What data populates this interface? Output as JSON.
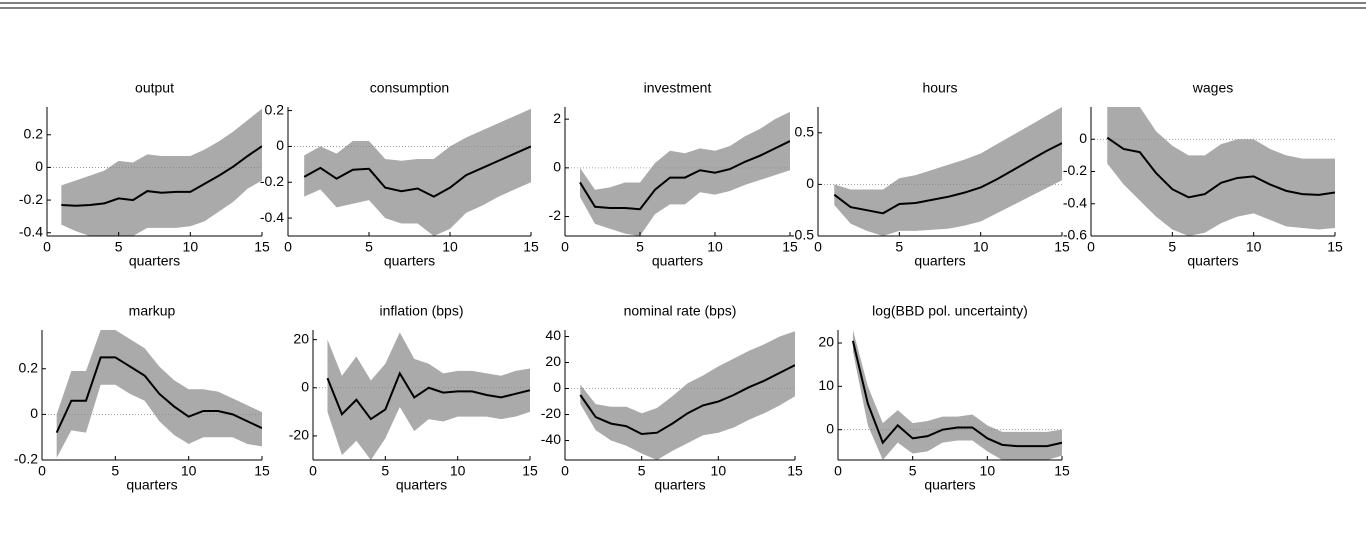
{
  "chart_data": [
    {
      "type": "line",
      "title": "output",
      "xlabel": "quarters",
      "x": [
        1,
        2,
        3,
        4,
        5,
        6,
        7,
        8,
        9,
        10,
        11,
        12,
        13,
        14,
        15
      ],
      "xlim": [
        0,
        15
      ],
      "xticks": [
        0,
        5,
        10,
        15
      ],
      "ylim": [
        -0.42,
        0.37
      ],
      "yticks": [
        -0.4,
        -0.2,
        0,
        0.2
      ],
      "color": "#000000",
      "band_color": "#aaaaaa",
      "values": [
        -0.23,
        -0.235,
        -0.23,
        -0.22,
        -0.19,
        -0.2,
        -0.145,
        -0.155,
        -0.15,
        -0.15,
        -0.1,
        -0.05,
        0.005,
        0.07,
        0.13
      ],
      "upper": [
        -0.11,
        -0.08,
        -0.05,
        -0.02,
        0.04,
        0.03,
        0.08,
        0.07,
        0.07,
        0.07,
        0.11,
        0.16,
        0.22,
        0.29,
        0.36
      ],
      "lower": [
        -0.35,
        -0.39,
        -0.42,
        -0.42,
        -0.42,
        -0.42,
        -0.37,
        -0.37,
        -0.37,
        -0.36,
        -0.33,
        -0.27,
        -0.21,
        -0.13,
        -0.08
      ]
    },
    {
      "type": "line",
      "title": "consumption",
      "xlabel": "quarters",
      "x": [
        1,
        2,
        3,
        4,
        5,
        6,
        7,
        8,
        9,
        10,
        11,
        12,
        13,
        14,
        15
      ],
      "xlim": [
        0,
        15
      ],
      "xticks": [
        0,
        5,
        10,
        15
      ],
      "ylim": [
        -0.5,
        0.22
      ],
      "yticks": [
        -0.4,
        -0.2,
        0,
        0.2
      ],
      "color": "#000000",
      "band_color": "#aaaaaa",
      "values": [
        -0.17,
        -0.12,
        -0.18,
        -0.13,
        -0.125,
        -0.23,
        -0.25,
        -0.235,
        -0.28,
        -0.23,
        -0.16,
        -0.12,
        -0.08,
        -0.04,
        0.0
      ],
      "upper": [
        -0.05,
        0.0,
        -0.04,
        0.03,
        0.03,
        -0.07,
        -0.08,
        -0.07,
        -0.07,
        0.0,
        0.05,
        0.09,
        0.13,
        0.17,
        0.21
      ],
      "lower": [
        -0.28,
        -0.24,
        -0.34,
        -0.32,
        -0.3,
        -0.4,
        -0.43,
        -0.43,
        -0.5,
        -0.46,
        -0.37,
        -0.33,
        -0.28,
        -0.24,
        -0.2
      ]
    },
    {
      "type": "line",
      "title": "investment",
      "xlabel": "quarters",
      "x": [
        1,
        2,
        3,
        4,
        5,
        6,
        7,
        8,
        9,
        10,
        11,
        12,
        13,
        14,
        15
      ],
      "xlim": [
        0,
        15
      ],
      "xticks": [
        0,
        5,
        10,
        15
      ],
      "ylim": [
        -2.8,
        2.5
      ],
      "yticks": [
        -2,
        0,
        2
      ],
      "color": "#000000",
      "band_color": "#aaaaaa",
      "values": [
        -0.6,
        -1.6,
        -1.65,
        -1.65,
        -1.7,
        -0.9,
        -0.4,
        -0.4,
        -0.1,
        -0.2,
        -0.05,
        0.25,
        0.5,
        0.8,
        1.1
      ],
      "upper": [
        0.0,
        -0.9,
        -0.8,
        -0.6,
        -0.6,
        0.2,
        0.7,
        0.6,
        0.8,
        0.7,
        0.9,
        1.3,
        1.6,
        2.0,
        2.3
      ],
      "lower": [
        -1.2,
        -2.3,
        -2.5,
        -2.7,
        -2.8,
        -1.9,
        -1.5,
        -1.5,
        -1.0,
        -1.1,
        -0.95,
        -0.7,
        -0.5,
        -0.3,
        -0.1
      ]
    },
    {
      "type": "line",
      "title": "hours",
      "xlabel": "quarters",
      "x": [
        1,
        2,
        3,
        4,
        5,
        6,
        7,
        8,
        9,
        10,
        11,
        12,
        13,
        14,
        15
      ],
      "xlim": [
        0,
        15
      ],
      "xticks": [
        0,
        5,
        10,
        15
      ],
      "ylim": [
        -0.5,
        0.75
      ],
      "yticks": [
        -0.5,
        0,
        0.5
      ],
      "color": "#000000",
      "band_color": "#aaaaaa",
      "values": [
        -0.1,
        -0.22,
        -0.25,
        -0.28,
        -0.19,
        -0.18,
        -0.15,
        -0.12,
        -0.08,
        -0.03,
        0.05,
        0.14,
        0.23,
        0.32,
        0.4
      ],
      "upper": [
        0.0,
        -0.05,
        -0.05,
        -0.05,
        0.06,
        0.09,
        0.14,
        0.19,
        0.24,
        0.3,
        0.39,
        0.48,
        0.57,
        0.66,
        0.75
      ],
      "lower": [
        -0.2,
        -0.38,
        -0.45,
        -0.5,
        -0.45,
        -0.45,
        -0.44,
        -0.43,
        -0.4,
        -0.36,
        -0.28,
        -0.2,
        -0.12,
        -0.04,
        0.04
      ]
    },
    {
      "type": "line",
      "title": "wages",
      "xlabel": "quarters",
      "x": [
        1,
        2,
        3,
        4,
        5,
        6,
        7,
        8,
        9,
        10,
        11,
        12,
        13,
        14,
        15
      ],
      "xlim": [
        0,
        15
      ],
      "xticks": [
        0,
        5,
        10,
        15
      ],
      "ylim": [
        -0.6,
        0.2
      ],
      "yticks": [
        -0.6,
        -0.4,
        -0.2,
        0
      ],
      "color": "#000000",
      "band_color": "#aaaaaa",
      "values": [
        0.01,
        -0.06,
        -0.08,
        -0.21,
        -0.31,
        -0.36,
        -0.34,
        -0.27,
        -0.24,
        -0.23,
        -0.28,
        -0.32,
        -0.34,
        -0.345,
        -0.33
      ],
      "upper": [
        0.2,
        0.2,
        0.2,
        0.05,
        -0.04,
        -0.1,
        -0.1,
        -0.03,
        0.0,
        0.0,
        -0.06,
        -0.1,
        -0.12,
        -0.12,
        -0.12
      ],
      "lower": [
        -0.15,
        -0.28,
        -0.38,
        -0.48,
        -0.56,
        -0.6,
        -0.58,
        -0.52,
        -0.48,
        -0.46,
        -0.5,
        -0.54,
        -0.55,
        -0.56,
        -0.55
      ]
    },
    {
      "type": "line",
      "title": "markup",
      "xlabel": "quarters",
      "x": [
        1,
        2,
        3,
        4,
        5,
        6,
        7,
        8,
        9,
        10,
        11,
        12,
        13,
        14,
        15
      ],
      "xlim": [
        0,
        15
      ],
      "xticks": [
        0,
        5,
        10,
        15
      ],
      "ylim": [
        -0.2,
        0.37
      ],
      "yticks": [
        -0.2,
        0,
        0.2
      ],
      "color": "#000000",
      "band_color": "#aaaaaa",
      "values": [
        -0.08,
        0.06,
        0.06,
        0.25,
        0.25,
        0.21,
        0.17,
        0.09,
        0.035,
        -0.01,
        0.015,
        0.015,
        0.0,
        -0.03,
        -0.06
      ],
      "upper": [
        0.0,
        0.19,
        0.19,
        0.37,
        0.37,
        0.33,
        0.29,
        0.21,
        0.15,
        0.11,
        0.11,
        0.1,
        0.07,
        0.04,
        0.01
      ],
      "lower": [
        -0.19,
        -0.07,
        -0.08,
        0.13,
        0.13,
        0.09,
        0.06,
        -0.03,
        -0.09,
        -0.13,
        -0.1,
        -0.1,
        -0.1,
        -0.13,
        -0.14
      ]
    },
    {
      "type": "line",
      "title": "inflation (bps)",
      "xlabel": "quarters",
      "x": [
        1,
        2,
        3,
        4,
        5,
        6,
        7,
        8,
        9,
        10,
        11,
        12,
        13,
        14,
        15
      ],
      "xlim": [
        0,
        15
      ],
      "xticks": [
        0,
        5,
        10,
        15
      ],
      "ylim": [
        -30,
        24
      ],
      "yticks": [
        -20,
        0,
        20
      ],
      "color": "#000000",
      "band_color": "#aaaaaa",
      "values": [
        4,
        -11,
        -5,
        -13,
        -9,
        6,
        -4,
        0,
        -2,
        -1.5,
        -1.5,
        -3,
        -4,
        -2.5,
        -1
      ],
      "upper": [
        20,
        5,
        13,
        3,
        10,
        23,
        12,
        10,
        6,
        7,
        7,
        6,
        5,
        7,
        8
      ],
      "lower": [
        -10,
        -28,
        -22,
        -30,
        -21,
        -8,
        -18,
        -13,
        -14,
        -12,
        -12,
        -12,
        -13,
        -12,
        -10
      ]
    },
    {
      "type": "line",
      "title": "nominal rate (bps)",
      "xlabel": "quarters",
      "x": [
        1,
        2,
        3,
        4,
        5,
        6,
        7,
        8,
        9,
        10,
        11,
        12,
        13,
        14,
        15
      ],
      "xlim": [
        0,
        15
      ],
      "xticks": [
        0,
        5,
        10,
        15
      ],
      "ylim": [
        -55,
        45
      ],
      "yticks": [
        -40,
        -20,
        0,
        20,
        40
      ],
      "color": "#000000",
      "band_color": "#aaaaaa",
      "values": [
        -5,
        -22,
        -27,
        -29,
        -35,
        -34,
        -27,
        -19,
        -13,
        -10,
        -5,
        1,
        6,
        12,
        18
      ],
      "upper": [
        3,
        -12,
        -14,
        -14,
        -19,
        -15,
        -6,
        4,
        10,
        17,
        23,
        29,
        34,
        40,
        44
      ],
      "lower": [
        -12,
        -32,
        -40,
        -44,
        -50,
        -55,
        -48,
        -42,
        -36,
        -34,
        -30,
        -24,
        -19,
        -13,
        -6
      ]
    },
    {
      "type": "line",
      "title": "log(BBD pol. uncertainty)",
      "xlabel": "quarters",
      "x": [
        1,
        2,
        3,
        4,
        5,
        6,
        7,
        8,
        9,
        10,
        11,
        12,
        13,
        14,
        15
      ],
      "xlim": [
        0,
        15
      ],
      "xticks": [
        0,
        5,
        10,
        15
      ],
      "ylim": [
        -7,
        23
      ],
      "yticks": [
        0,
        10,
        20
      ],
      "color": "#000000",
      "band_color": "#aaaaaa",
      "values": [
        20.5,
        6,
        -3,
        1,
        -2,
        -1.5,
        0,
        0.5,
        0.5,
        -2,
        -3.5,
        -3.8,
        -3.8,
        -3.8,
        -3
      ],
      "upper": [
        23,
        10,
        1.5,
        4.5,
        1.5,
        2,
        3,
        3,
        3.5,
        1,
        -0.5,
        -0.5,
        -0.5,
        -0.5,
        0
      ],
      "lower": [
        18,
        1,
        -7,
        -3,
        -5.5,
        -5,
        -3,
        -2.5,
        -2.5,
        -5,
        -7,
        -7,
        -7,
        -7,
        -6
      ]
    }
  ]
}
